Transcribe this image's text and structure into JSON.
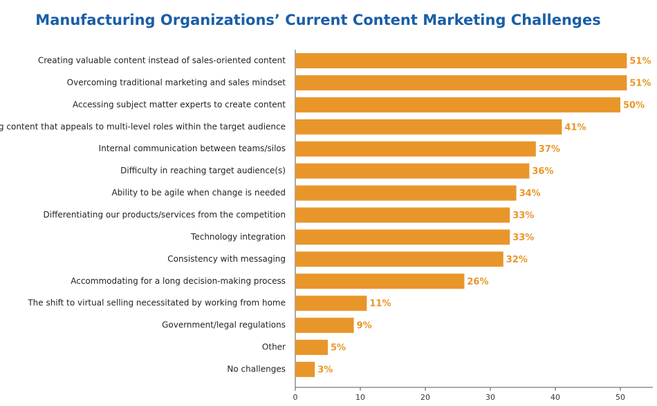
{
  "chart_data": {
    "type": "bar",
    "orientation": "horizontal",
    "title": "Manufacturing Organizations’ Current Content Marketing Challenges",
    "categories": [
      "Creating valuable content instead of sales-oriented content",
      "Overcoming traditional marketing and sales mindset",
      "Accessing subject matter experts to create content",
      "Creating content that appeals to multi-level roles within the target audience",
      "Internal communication between teams/silos",
      "Difficulty in reaching target audience(s)",
      "Ability to be agile when change is needed",
      "Differentiating our products/services from the competition",
      "Technology integration",
      "Consistency with messaging",
      "Accommodating for a long decision-making process",
      "The shift to virtual selling necessitated by working from home",
      "Government/legal regulations",
      "Other",
      "No challenges"
    ],
    "values": [
      51,
      51,
      50,
      41,
      37,
      36,
      34,
      33,
      33,
      32,
      26,
      11,
      9,
      5,
      3
    ],
    "value_labels": [
      "51%",
      "51%",
      "50%",
      "41%",
      "37%",
      "36%",
      "34%",
      "33%",
      "33%",
      "32%",
      "26%",
      "11%",
      "9%",
      "5%",
      "3%"
    ],
    "color": "#e8962a",
    "xlim": [
      0,
      55
    ],
    "xticks": [
      0,
      10,
      20,
      30,
      40,
      50
    ]
  }
}
